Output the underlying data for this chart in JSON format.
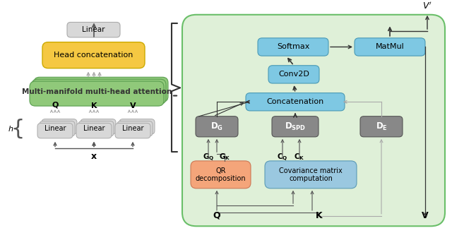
{
  "fig_width": 6.4,
  "fig_height": 3.3,
  "bg_color": "#ffffff",
  "green_bg": "#d4edda",
  "green_border": "#6abf69",
  "blue_box": "#7ec8e3",
  "blue_box_dark": "#5aabcf",
  "gray_box": "#808080",
  "gray_light": "#c8c8c8",
  "orange_box": "#f4a57a",
  "yellow_box": "#f5c842",
  "linear_box": "#d0d0d0",
  "left_title": "Multi-manifold multi-head attention",
  "right_boxes": {
    "softmax": "Softmax",
    "matmul": "MatMul",
    "conv2d": "Conv2D",
    "concat": "Concatenation",
    "dg": "D_G",
    "dspd": "D_SPD",
    "de": "D_E",
    "qr": "QR\ndecomposition",
    "cov": "Covariance matrix\ncomputation"
  }
}
